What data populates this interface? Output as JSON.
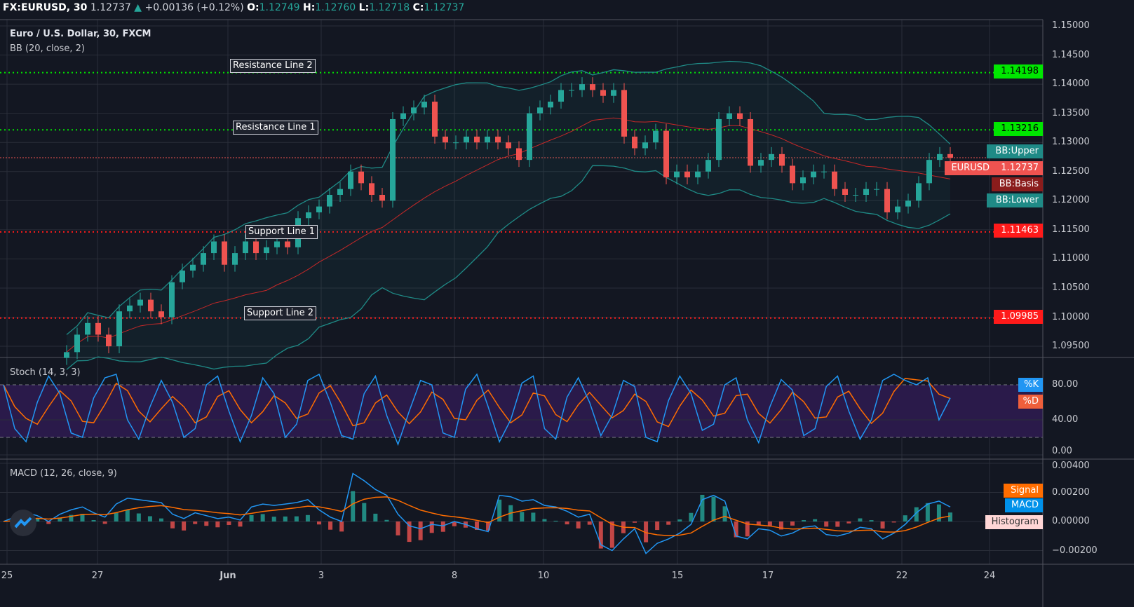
{
  "header": {
    "symbol": "FX:EURUSD, 30",
    "price": "1.12737",
    "change": "+0.00136 (+0.12%)",
    "o_label": "O:",
    "o": "1.12749",
    "h_label": "H:",
    "h": "1.12760",
    "l_label": "L:",
    "l": "1.12718",
    "c_label": "C:",
    "c": "1.12737"
  },
  "legend": {
    "title": "Euro / U.S. Dollar, 30, FXCM",
    "bb": "BB (20, close, 2)",
    "stoch": "Stoch (14, 3, 3)",
    "macd": "MACD (12, 26, close, 9)"
  },
  "lines": [
    {
      "label": "Resistance Line 2",
      "value": "1.14198",
      "price": 1.14198,
      "color": "#00e600"
    },
    {
      "label": "Resistance Line 1",
      "value": "1.13216",
      "price": 1.13216,
      "color": "#00e600"
    },
    {
      "label": "Support Line 1",
      "value": "1.11463",
      "price": 1.11463,
      "color": "#ff1a1a"
    },
    {
      "label": "Support Line 2",
      "value": "1.09985",
      "price": 1.09985,
      "color": "#ff1a1a"
    }
  ],
  "tags": {
    "bb_upper": "BB:Upper",
    "eurusd": "EURUSD",
    "eurusd_value": "1.12737",
    "bb_basis": "BB:Basis",
    "bb_lower": "BB:Lower",
    "k": "%K",
    "d": "%D",
    "signal": "Signal",
    "macd": "MACD",
    "histogram": "Histogram"
  },
  "colors": {
    "up": "#26a69a",
    "down": "#ef5350",
    "bb": "#1f8a86",
    "basis": "#c62828",
    "k": "#2196f3",
    "d": "#ff6d00",
    "stoch_band": "#2a1a4a"
  },
  "chart_data": {
    "type": "candlestick",
    "price_axis": {
      "ticks": [
        "1.15000",
        "1.14500",
        "1.14000",
        "1.13500",
        "1.13000",
        "1.12500",
        "1.12000",
        "1.11500",
        "1.11000",
        "1.10500",
        "1.10000",
        "1.09500"
      ],
      "ylim": [
        1.0935,
        1.1515
      ]
    },
    "stoch_axis": {
      "ticks": [
        "80.00",
        "40.00",
        "0.00"
      ],
      "ylim": [
        0,
        100
      ],
      "band": [
        20,
        80
      ]
    },
    "macd_axis": {
      "ticks": [
        "0.00400",
        "0.00200",
        "0.00000",
        "−0.00200"
      ],
      "ylim": [
        -0.0026,
        0.0041
      ]
    },
    "date_labels": [
      "25",
      "27",
      "Jun",
      "3",
      "8",
      "10",
      "15",
      "17",
      "22",
      "24"
    ],
    "close": [
      1.094,
      1.097,
      1.099,
      1.097,
      1.095,
      1.101,
      1.102,
      1.103,
      1.101,
      1.1,
      1.106,
      1.108,
      1.109,
      1.111,
      1.113,
      1.109,
      1.111,
      1.113,
      1.111,
      1.112,
      1.113,
      1.112,
      1.117,
      1.118,
      1.119,
      1.121,
      1.122,
      1.125,
      1.123,
      1.121,
      1.12,
      1.134,
      1.135,
      1.136,
      1.137,
      1.131,
      1.13,
      1.13,
      1.131,
      1.13,
      1.131,
      1.13,
      1.129,
      1.127,
      1.135,
      1.136,
      1.137,
      1.139,
      1.139,
      1.14,
      1.139,
      1.138,
      1.139,
      1.131,
      1.129,
      1.13,
      1.132,
      1.124,
      1.125,
      1.124,
      1.125,
      1.127,
      1.134,
      1.135,
      1.134,
      1.126,
      1.127,
      1.128,
      1.126,
      1.123,
      1.124,
      1.125,
      1.125,
      1.122,
      1.121,
      1.121,
      1.122,
      1.122,
      1.118,
      1.119,
      1.12,
      1.123,
      1.127,
      1.128,
      1.12737
    ],
    "stoch_k": [
      80,
      30,
      15,
      60,
      90,
      70,
      25,
      20,
      65,
      88,
      92,
      40,
      18,
      55,
      85,
      60,
      20,
      30,
      80,
      90,
      50,
      15,
      45,
      88,
      70,
      20,
      35,
      85,
      92,
      60,
      22,
      18,
      70,
      90,
      45,
      12,
      50,
      85,
      80,
      25,
      20,
      75,
      92,
      55,
      15,
      40,
      82,
      90,
      30,
      18,
      66,
      88,
      60,
      22,
      45,
      85,
      78,
      20,
      15,
      62,
      90,
      70,
      28,
      35,
      80,
      88,
      40,
      14,
      55,
      86,
      74,
      22,
      30,
      78,
      90,
      50,
      18,
      40,
      85,
      92,
      85,
      80,
      88,
      40,
      65
    ],
    "macd": [
      0,
      0.0003,
      0.0006,
      0.0004,
      0,
      0.0005,
      0.0008,
      0.001,
      0.0006,
      0.0003,
      0.0012,
      0.0016,
      0.0015,
      0.0014,
      0.0013,
      0.0005,
      0.0002,
      0.0006,
      0.0004,
      0.0002,
      0.0003,
      0.0001,
      0.001,
      0.0012,
      0.0011,
      0.0012,
      0.0013,
      0.0015,
      0.0008,
      0.0003,
      0,
      0.0033,
      0.0028,
      0.0022,
      0.0018,
      0.0005,
      -0.0003,
      -0.0005,
      -0.0002,
      -0.0003,
      0,
      -0.0002,
      -0.0005,
      -0.0007,
      0.0018,
      0.0017,
      0.0014,
      0.0015,
      0.0011,
      0.001,
      0.0007,
      0.0003,
      0.0005,
      -0.0016,
      -0.002,
      -0.0012,
      -0.0005,
      -0.0022,
      -0.0015,
      -0.0012,
      -0.0008,
      -0.0002,
      0.0015,
      0.0018,
      0.0014,
      -0.001,
      -0.0012,
      -0.0005,
      -0.0006,
      -0.001,
      -0.0008,
      -0.0004,
      -0.0003,
      -0.0009,
      -0.001,
      -0.0008,
      -0.0004,
      -0.0005,
      -0.0012,
      -0.0008,
      -0.0002,
      0.0006,
      0.0012,
      0.0014,
      0.001
    ]
  }
}
